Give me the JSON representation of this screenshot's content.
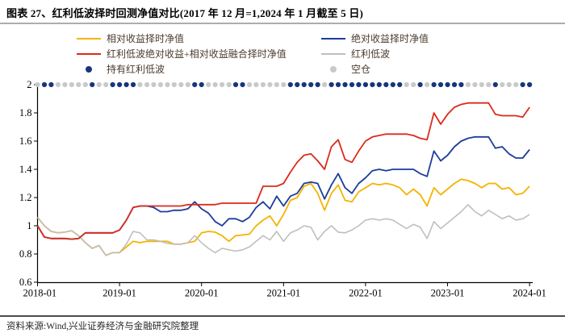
{
  "title": "图表 27、红利低波择时回测净值对比(2017 年 12 月=1,2024 年 1 月截至 5 日)",
  "source": "资料来源:Wind,兴业证券经济与金融研究院整理",
  "legend": {
    "items": [
      {
        "label": "相对收益择时净值",
        "color": "#F5B301",
        "marker": "line"
      },
      {
        "label": "绝对收益择时净值",
        "color": "#1C3D99",
        "marker": "line"
      },
      {
        "label": "红利低波绝对收益+相对收益融合择时净值",
        "color": "#DC2B1C",
        "marker": "line"
      },
      {
        "label": "红利低波",
        "color": "#BFBFBF",
        "marker": "line"
      },
      {
        "label": "持有红利低波",
        "color": "#16367C",
        "marker": "dot"
      },
      {
        "label": "空仓",
        "color": "#C9C9C9",
        "marker": "dot"
      }
    ]
  },
  "chart_data": {
    "type": "line",
    "x_frequency": "monthly",
    "x_range": [
      "2018-01",
      "2024-01"
    ],
    "xticks": [
      "2018-01",
      "2019-01",
      "2020-01",
      "2021-01",
      "2022-01",
      "2023-01",
      "2024-01"
    ],
    "yticks": [
      "2",
      "1.8",
      "1.6",
      "1.4",
      "1.2",
      "1",
      "0.8",
      "0.6"
    ],
    "ylim": [
      0.6,
      2
    ],
    "grid": false,
    "legend_position": "top",
    "series": [
      {
        "name": "相对收益择时净值",
        "color": "#F5B301",
        "values": [
          1.06,
          1.0,
          0.96,
          0.95,
          0.955,
          0.965,
          0.93,
          0.88,
          0.84,
          0.86,
          0.79,
          0.81,
          0.81,
          0.85,
          0.89,
          0.88,
          0.89,
          0.89,
          0.89,
          0.89,
          0.87,
          0.87,
          0.88,
          0.89,
          0.95,
          0.96,
          0.955,
          0.93,
          0.89,
          0.93,
          0.935,
          0.94,
          1.0,
          1.04,
          1.07,
          1.0,
          1.08,
          1.18,
          1.2,
          1.28,
          1.3,
          1.23,
          1.11,
          1.23,
          1.29,
          1.18,
          1.17,
          1.24,
          1.27,
          1.3,
          1.29,
          1.3,
          1.29,
          1.27,
          1.22,
          1.26,
          1.22,
          1.14,
          1.27,
          1.22,
          1.26,
          1.3,
          1.33,
          1.32,
          1.3,
          1.27,
          1.3,
          1.3,
          1.26,
          1.27,
          1.22,
          1.23,
          1.28
        ]
      },
      {
        "name": "红利低波",
        "color": "#BFBFBF",
        "values": [
          1.06,
          1.0,
          0.96,
          0.95,
          0.955,
          0.965,
          0.93,
          0.88,
          0.84,
          0.86,
          0.79,
          0.81,
          0.81,
          0.87,
          0.96,
          0.95,
          0.9,
          0.9,
          0.89,
          0.875,
          0.87,
          0.87,
          0.88,
          0.93,
          0.88,
          0.84,
          0.81,
          0.84,
          0.83,
          0.82,
          0.83,
          0.85,
          0.89,
          0.93,
          0.9,
          0.96,
          0.89,
          0.95,
          0.97,
          1.0,
          0.99,
          0.9,
          0.96,
          1.0,
          0.955,
          0.95,
          0.97,
          1.0,
          1.04,
          1.05,
          1.04,
          1.05,
          1.04,
          1.01,
          0.98,
          1.01,
          0.99,
          0.91,
          1.03,
          0.98,
          1.02,
          1.06,
          1.1,
          1.15,
          1.1,
          1.07,
          1.11,
          1.08,
          1.05,
          1.07,
          1.04,
          1.05,
          1.08
        ]
      },
      {
        "name": "绝对收益择时净值",
        "color": "#1C3D99",
        "values": [
          1.0,
          0.92,
          0.91,
          0.91,
          0.91,
          0.905,
          0.91,
          0.95,
          0.95,
          0.95,
          0.95,
          0.95,
          0.97,
          1.04,
          1.13,
          1.14,
          1.14,
          1.13,
          1.1,
          1.1,
          1.11,
          1.11,
          1.12,
          1.17,
          1.12,
          1.09,
          1.03,
          1.0,
          1.05,
          1.05,
          1.03,
          1.06,
          1.13,
          1.17,
          1.12,
          1.21,
          1.14,
          1.21,
          1.23,
          1.3,
          1.31,
          1.3,
          1.19,
          1.29,
          1.37,
          1.27,
          1.23,
          1.3,
          1.34,
          1.39,
          1.4,
          1.39,
          1.4,
          1.4,
          1.4,
          1.4,
          1.37,
          1.35,
          1.53,
          1.46,
          1.5,
          1.56,
          1.6,
          1.62,
          1.63,
          1.63,
          1.63,
          1.55,
          1.56,
          1.51,
          1.48,
          1.48,
          1.54
        ]
      },
      {
        "name": "红利低波绝对收益+相对收益融合择时净值",
        "color": "#DC2B1C",
        "values": [
          1.0,
          0.92,
          0.91,
          0.91,
          0.91,
          0.905,
          0.91,
          0.95,
          0.95,
          0.95,
          0.95,
          0.95,
          0.97,
          1.04,
          1.13,
          1.14,
          1.14,
          1.14,
          1.14,
          1.14,
          1.14,
          1.14,
          1.15,
          1.15,
          1.15,
          1.15,
          1.15,
          1.16,
          1.16,
          1.16,
          1.16,
          1.16,
          1.16,
          1.28,
          1.28,
          1.28,
          1.3,
          1.38,
          1.45,
          1.5,
          1.51,
          1.46,
          1.4,
          1.56,
          1.61,
          1.47,
          1.45,
          1.53,
          1.6,
          1.63,
          1.64,
          1.65,
          1.65,
          1.65,
          1.65,
          1.64,
          1.62,
          1.61,
          1.8,
          1.72,
          1.79,
          1.84,
          1.86,
          1.87,
          1.87,
          1.87,
          1.87,
          1.79,
          1.78,
          1.78,
          1.78,
          1.77,
          1.84
        ]
      }
    ],
    "position_dots": {
      "y_value": 2,
      "hold_label": "持有红利低波",
      "empty_label": "空仓",
      "hold_color": "#16367C",
      "empty_color": "#C9C9C9",
      "pattern": "EHHEEEEEHEEHHHHEEEEEEEEHHEEEEHHEEEEEEHHHHHEHHHHHHHHHHHEEHEHHHHHEEEEHEEEHH"
    }
  }
}
